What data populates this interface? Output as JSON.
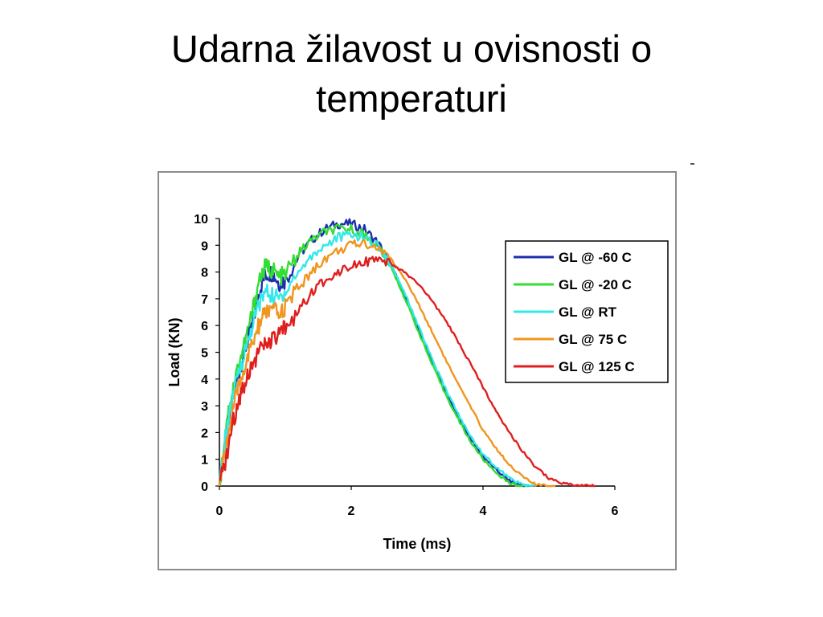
{
  "slide": {
    "title_line1": "Udarna žilavost u ovisnosti o",
    "title_line2": "temperaturi"
  },
  "chart_data": {
    "type": "line",
    "xlabel": "Time (ms)",
    "ylabel": "Load (KN)",
    "xlim": [
      0,
      6
    ],
    "ylim": [
      0,
      10
    ],
    "x_ticks": [
      0,
      2,
      4,
      6
    ],
    "y_ticks": [
      0,
      1,
      2,
      3,
      4,
      5,
      6,
      7,
      8,
      9,
      10
    ],
    "grid": false,
    "legend_position": "right",
    "series": [
      {
        "name": "GL @ -60 C",
        "color": "#1c2fb0",
        "x": [
          0,
          0.1,
          0.2,
          0.3,
          0.4,
          0.5,
          0.6,
          0.7,
          0.8,
          0.9,
          1.0,
          1.2,
          1.4,
          1.6,
          1.8,
          2.0,
          2.2,
          2.4,
          2.6,
          2.8,
          3.0,
          3.2,
          3.4,
          3.6,
          3.8,
          4.0,
          4.2,
          4.4,
          4.6,
          4.7
        ],
        "y": [
          0,
          2.0,
          3.2,
          4.3,
          5.2,
          6.0,
          7.3,
          7.9,
          8.0,
          7.6,
          7.7,
          8.6,
          9.2,
          9.6,
          9.8,
          9.8,
          9.6,
          9.1,
          8.3,
          7.2,
          6.0,
          4.8,
          3.7,
          2.7,
          1.8,
          1.1,
          0.6,
          0.2,
          0,
          0
        ]
      },
      {
        "name": "GL @ -20 C",
        "color": "#33dd33",
        "x": [
          0,
          0.1,
          0.2,
          0.3,
          0.4,
          0.5,
          0.6,
          0.7,
          0.8,
          0.9,
          1.0,
          1.2,
          1.4,
          1.6,
          1.8,
          2.0,
          2.2,
          2.4,
          2.6,
          2.8,
          3.0,
          3.2,
          3.4,
          3.6,
          3.8,
          4.0,
          4.2,
          4.4,
          4.6,
          4.7
        ],
        "y": [
          0,
          2.3,
          3.6,
          4.6,
          5.5,
          6.5,
          7.7,
          8.2,
          8.1,
          7.8,
          7.9,
          8.7,
          9.2,
          9.5,
          9.6,
          9.6,
          9.4,
          9.0,
          8.2,
          7.1,
          5.9,
          4.7,
          3.6,
          2.6,
          1.7,
          1.0,
          0.5,
          0.1,
          0,
          0
        ]
      },
      {
        "name": "GL @ RT",
        "color": "#33e8e8",
        "x": [
          0,
          0.1,
          0.2,
          0.3,
          0.4,
          0.5,
          0.6,
          0.7,
          0.8,
          0.9,
          1.0,
          1.2,
          1.4,
          1.6,
          1.8,
          2.0,
          2.2,
          2.4,
          2.6,
          2.8,
          3.0,
          3.2,
          3.4,
          3.6,
          3.8,
          4.0,
          4.2,
          4.4,
          4.6,
          4.8
        ],
        "y": [
          0,
          2.0,
          3.3,
          4.3,
          5.1,
          6.0,
          6.8,
          7.3,
          7.1,
          7.0,
          7.3,
          8.0,
          8.6,
          9.0,
          9.3,
          9.4,
          9.3,
          9.0,
          8.3,
          7.3,
          6.1,
          4.9,
          3.8,
          2.8,
          1.9,
          1.2,
          0.7,
          0.3,
          0.05,
          0
        ]
      },
      {
        "name": "GL @ 75 C",
        "color": "#f0951e",
        "x": [
          0,
          0.1,
          0.2,
          0.3,
          0.4,
          0.5,
          0.6,
          0.7,
          0.8,
          0.9,
          1.0,
          1.2,
          1.4,
          1.6,
          1.8,
          2.0,
          2.2,
          2.4,
          2.6,
          2.8,
          3.0,
          3.2,
          3.4,
          3.6,
          3.8,
          4.0,
          4.2,
          4.4,
          4.6,
          4.8,
          5.0,
          5.1
        ],
        "y": [
          0,
          1.5,
          2.8,
          3.8,
          4.6,
          5.3,
          6.0,
          6.5,
          6.6,
          6.4,
          6.7,
          7.4,
          8.0,
          8.5,
          8.8,
          9.0,
          9.1,
          8.9,
          8.5,
          7.8,
          6.9,
          5.9,
          4.9,
          3.9,
          3.0,
          2.1,
          1.4,
          0.8,
          0.35,
          0.05,
          0,
          0
        ]
      },
      {
        "name": "GL @ 125 C",
        "color": "#e01e1e",
        "x": [
          0,
          0.1,
          0.2,
          0.3,
          0.4,
          0.5,
          0.6,
          0.7,
          0.8,
          0.9,
          1.0,
          1.2,
          1.4,
          1.6,
          1.8,
          2.0,
          2.2,
          2.4,
          2.6,
          2.8,
          3.0,
          3.2,
          3.4,
          3.6,
          3.8,
          4.0,
          4.2,
          4.4,
          4.6,
          4.8,
          5.0,
          5.2,
          5.4,
          5.6,
          5.7
        ],
        "y": [
          0,
          1.0,
          2.3,
          3.3,
          4.0,
          4.6,
          5.0,
          5.3,
          5.4,
          5.6,
          5.9,
          6.6,
          7.2,
          7.7,
          8.0,
          8.3,
          8.4,
          8.4,
          8.3,
          8.0,
          7.6,
          7.0,
          6.3,
          5.5,
          4.6,
          3.7,
          2.8,
          2.0,
          1.3,
          0.7,
          0.3,
          0.1,
          0.02,
          0,
          0
        ]
      }
    ]
  }
}
